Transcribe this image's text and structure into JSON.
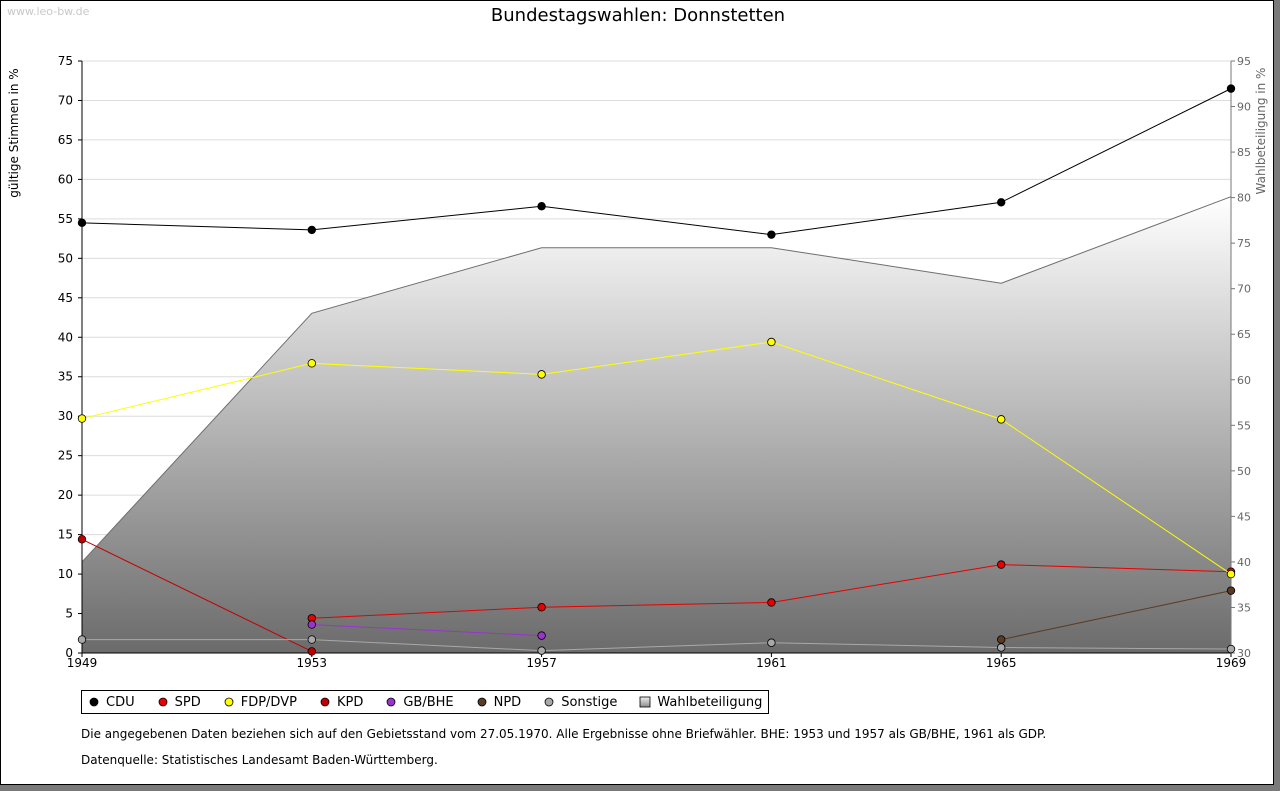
{
  "watermark": "www.leo-bw.de",
  "footnote": "Die angegebenen Daten beziehen sich auf den Gebietsstand vom 27.05.1970. Alle Ergebnisse ohne Briefwähler. BHE: 1953 und 1957 als GB/BHE, 1961 als GDP.",
  "source": "Datenquelle: Statistisches Landesamt Baden-Württemberg.",
  "chart_data": {
    "type": "line",
    "title": "Bundestagswahlen: Donnstetten",
    "ylabel": "gültige Stimmen in %",
    "y2label": "Wahlbeteiligung in %",
    "x": [
      1949,
      1953,
      1957,
      1961,
      1965,
      1969
    ],
    "ylim": [
      0,
      75
    ],
    "yticks": [
      0,
      5,
      10,
      15,
      20,
      25,
      30,
      35,
      40,
      45,
      50,
      55,
      60,
      65,
      70,
      75
    ],
    "y2lim": [
      30,
      95
    ],
    "y2ticks": [
      30,
      35,
      40,
      45,
      50,
      55,
      60,
      65,
      70,
      75,
      80,
      85,
      90,
      95
    ],
    "grid": true,
    "legend_position": "bottom",
    "series": [
      {
        "name": "CDU",
        "color": "#000000",
        "values": [
          54.5,
          53.6,
          56.6,
          53.0,
          57.1,
          71.5
        ]
      },
      {
        "name": "SPD",
        "color": "#e60000",
        "values": [
          null,
          4.4,
          5.8,
          6.4,
          11.2,
          10.3
        ]
      },
      {
        "name": "FDP/DVP",
        "color": "#ffff00",
        "values": [
          29.7,
          36.7,
          35.3,
          39.4,
          29.6,
          10.0
        ]
      },
      {
        "name": "KPD",
        "color": "#c00000",
        "values": [
          14.4,
          0.2,
          null,
          null,
          null,
          null
        ]
      },
      {
        "name": "GB/BHE",
        "color": "#9933cc",
        "values": [
          null,
          3.6,
          2.2,
          null,
          null,
          null
        ]
      },
      {
        "name": "NPD",
        "color": "#5a3a22",
        "values": [
          null,
          null,
          null,
          null,
          1.7,
          7.9
        ]
      },
      {
        "name": "Sonstige",
        "color": "#a8a8a8",
        "values": [
          1.7,
          1.7,
          0.3,
          1.3,
          0.7,
          0.5
        ]
      }
    ],
    "area_series": {
      "name": "Wahlbeteiligung",
      "axis": "right",
      "values": [
        40,
        67.3,
        74.5,
        74.5,
        70.6,
        80.1
      ]
    }
  }
}
